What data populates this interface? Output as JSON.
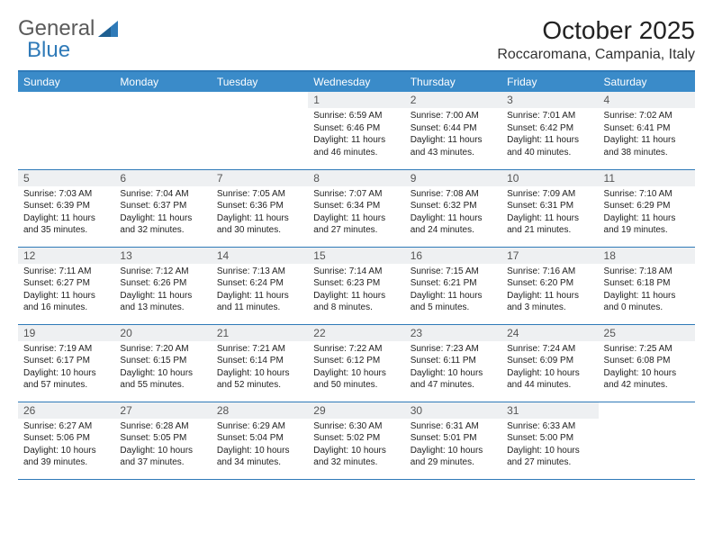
{
  "logo": {
    "part1": "General",
    "part2": "Blue"
  },
  "title": "October 2025",
  "location": "Roccaromana, Campania, Italy",
  "colors": {
    "header_bg": "#3a8bc9",
    "border": "#2f7ab8",
    "daynum_bg": "#eef0f2",
    "logo_gray": "#5a5a5a",
    "logo_blue": "#2f7ab8"
  },
  "day_headers": [
    "Sunday",
    "Monday",
    "Tuesday",
    "Wednesday",
    "Thursday",
    "Friday",
    "Saturday"
  ],
  "weeks": [
    [
      {
        "n": "",
        "sr": "",
        "ss": "",
        "dl": "",
        "empty": true
      },
      {
        "n": "",
        "sr": "",
        "ss": "",
        "dl": "",
        "empty": true
      },
      {
        "n": "",
        "sr": "",
        "ss": "",
        "dl": "",
        "empty": true
      },
      {
        "n": "1",
        "sr": "Sunrise: 6:59 AM",
        "ss": "Sunset: 6:46 PM",
        "dl": "Daylight: 11 hours and 46 minutes."
      },
      {
        "n": "2",
        "sr": "Sunrise: 7:00 AM",
        "ss": "Sunset: 6:44 PM",
        "dl": "Daylight: 11 hours and 43 minutes."
      },
      {
        "n": "3",
        "sr": "Sunrise: 7:01 AM",
        "ss": "Sunset: 6:42 PM",
        "dl": "Daylight: 11 hours and 40 minutes."
      },
      {
        "n": "4",
        "sr": "Sunrise: 7:02 AM",
        "ss": "Sunset: 6:41 PM",
        "dl": "Daylight: 11 hours and 38 minutes."
      }
    ],
    [
      {
        "n": "5",
        "sr": "Sunrise: 7:03 AM",
        "ss": "Sunset: 6:39 PM",
        "dl": "Daylight: 11 hours and 35 minutes."
      },
      {
        "n": "6",
        "sr": "Sunrise: 7:04 AM",
        "ss": "Sunset: 6:37 PM",
        "dl": "Daylight: 11 hours and 32 minutes."
      },
      {
        "n": "7",
        "sr": "Sunrise: 7:05 AM",
        "ss": "Sunset: 6:36 PM",
        "dl": "Daylight: 11 hours and 30 minutes."
      },
      {
        "n": "8",
        "sr": "Sunrise: 7:07 AM",
        "ss": "Sunset: 6:34 PM",
        "dl": "Daylight: 11 hours and 27 minutes."
      },
      {
        "n": "9",
        "sr": "Sunrise: 7:08 AM",
        "ss": "Sunset: 6:32 PM",
        "dl": "Daylight: 11 hours and 24 minutes."
      },
      {
        "n": "10",
        "sr": "Sunrise: 7:09 AM",
        "ss": "Sunset: 6:31 PM",
        "dl": "Daylight: 11 hours and 21 minutes."
      },
      {
        "n": "11",
        "sr": "Sunrise: 7:10 AM",
        "ss": "Sunset: 6:29 PM",
        "dl": "Daylight: 11 hours and 19 minutes."
      }
    ],
    [
      {
        "n": "12",
        "sr": "Sunrise: 7:11 AM",
        "ss": "Sunset: 6:27 PM",
        "dl": "Daylight: 11 hours and 16 minutes."
      },
      {
        "n": "13",
        "sr": "Sunrise: 7:12 AM",
        "ss": "Sunset: 6:26 PM",
        "dl": "Daylight: 11 hours and 13 minutes."
      },
      {
        "n": "14",
        "sr": "Sunrise: 7:13 AM",
        "ss": "Sunset: 6:24 PM",
        "dl": "Daylight: 11 hours and 11 minutes."
      },
      {
        "n": "15",
        "sr": "Sunrise: 7:14 AM",
        "ss": "Sunset: 6:23 PM",
        "dl": "Daylight: 11 hours and 8 minutes."
      },
      {
        "n": "16",
        "sr": "Sunrise: 7:15 AM",
        "ss": "Sunset: 6:21 PM",
        "dl": "Daylight: 11 hours and 5 minutes."
      },
      {
        "n": "17",
        "sr": "Sunrise: 7:16 AM",
        "ss": "Sunset: 6:20 PM",
        "dl": "Daylight: 11 hours and 3 minutes."
      },
      {
        "n": "18",
        "sr": "Sunrise: 7:18 AM",
        "ss": "Sunset: 6:18 PM",
        "dl": "Daylight: 11 hours and 0 minutes."
      }
    ],
    [
      {
        "n": "19",
        "sr": "Sunrise: 7:19 AM",
        "ss": "Sunset: 6:17 PM",
        "dl": "Daylight: 10 hours and 57 minutes."
      },
      {
        "n": "20",
        "sr": "Sunrise: 7:20 AM",
        "ss": "Sunset: 6:15 PM",
        "dl": "Daylight: 10 hours and 55 minutes."
      },
      {
        "n": "21",
        "sr": "Sunrise: 7:21 AM",
        "ss": "Sunset: 6:14 PM",
        "dl": "Daylight: 10 hours and 52 minutes."
      },
      {
        "n": "22",
        "sr": "Sunrise: 7:22 AM",
        "ss": "Sunset: 6:12 PM",
        "dl": "Daylight: 10 hours and 50 minutes."
      },
      {
        "n": "23",
        "sr": "Sunrise: 7:23 AM",
        "ss": "Sunset: 6:11 PM",
        "dl": "Daylight: 10 hours and 47 minutes."
      },
      {
        "n": "24",
        "sr": "Sunrise: 7:24 AM",
        "ss": "Sunset: 6:09 PM",
        "dl": "Daylight: 10 hours and 44 minutes."
      },
      {
        "n": "25",
        "sr": "Sunrise: 7:25 AM",
        "ss": "Sunset: 6:08 PM",
        "dl": "Daylight: 10 hours and 42 minutes."
      }
    ],
    [
      {
        "n": "26",
        "sr": "Sunrise: 6:27 AM",
        "ss": "Sunset: 5:06 PM",
        "dl": "Daylight: 10 hours and 39 minutes."
      },
      {
        "n": "27",
        "sr": "Sunrise: 6:28 AM",
        "ss": "Sunset: 5:05 PM",
        "dl": "Daylight: 10 hours and 37 minutes."
      },
      {
        "n": "28",
        "sr": "Sunrise: 6:29 AM",
        "ss": "Sunset: 5:04 PM",
        "dl": "Daylight: 10 hours and 34 minutes."
      },
      {
        "n": "29",
        "sr": "Sunrise: 6:30 AM",
        "ss": "Sunset: 5:02 PM",
        "dl": "Daylight: 10 hours and 32 minutes."
      },
      {
        "n": "30",
        "sr": "Sunrise: 6:31 AM",
        "ss": "Sunset: 5:01 PM",
        "dl": "Daylight: 10 hours and 29 minutes."
      },
      {
        "n": "31",
        "sr": "Sunrise: 6:33 AM",
        "ss": "Sunset: 5:00 PM",
        "dl": "Daylight: 10 hours and 27 minutes."
      },
      {
        "n": "",
        "sr": "",
        "ss": "",
        "dl": "",
        "empty": true
      }
    ]
  ]
}
